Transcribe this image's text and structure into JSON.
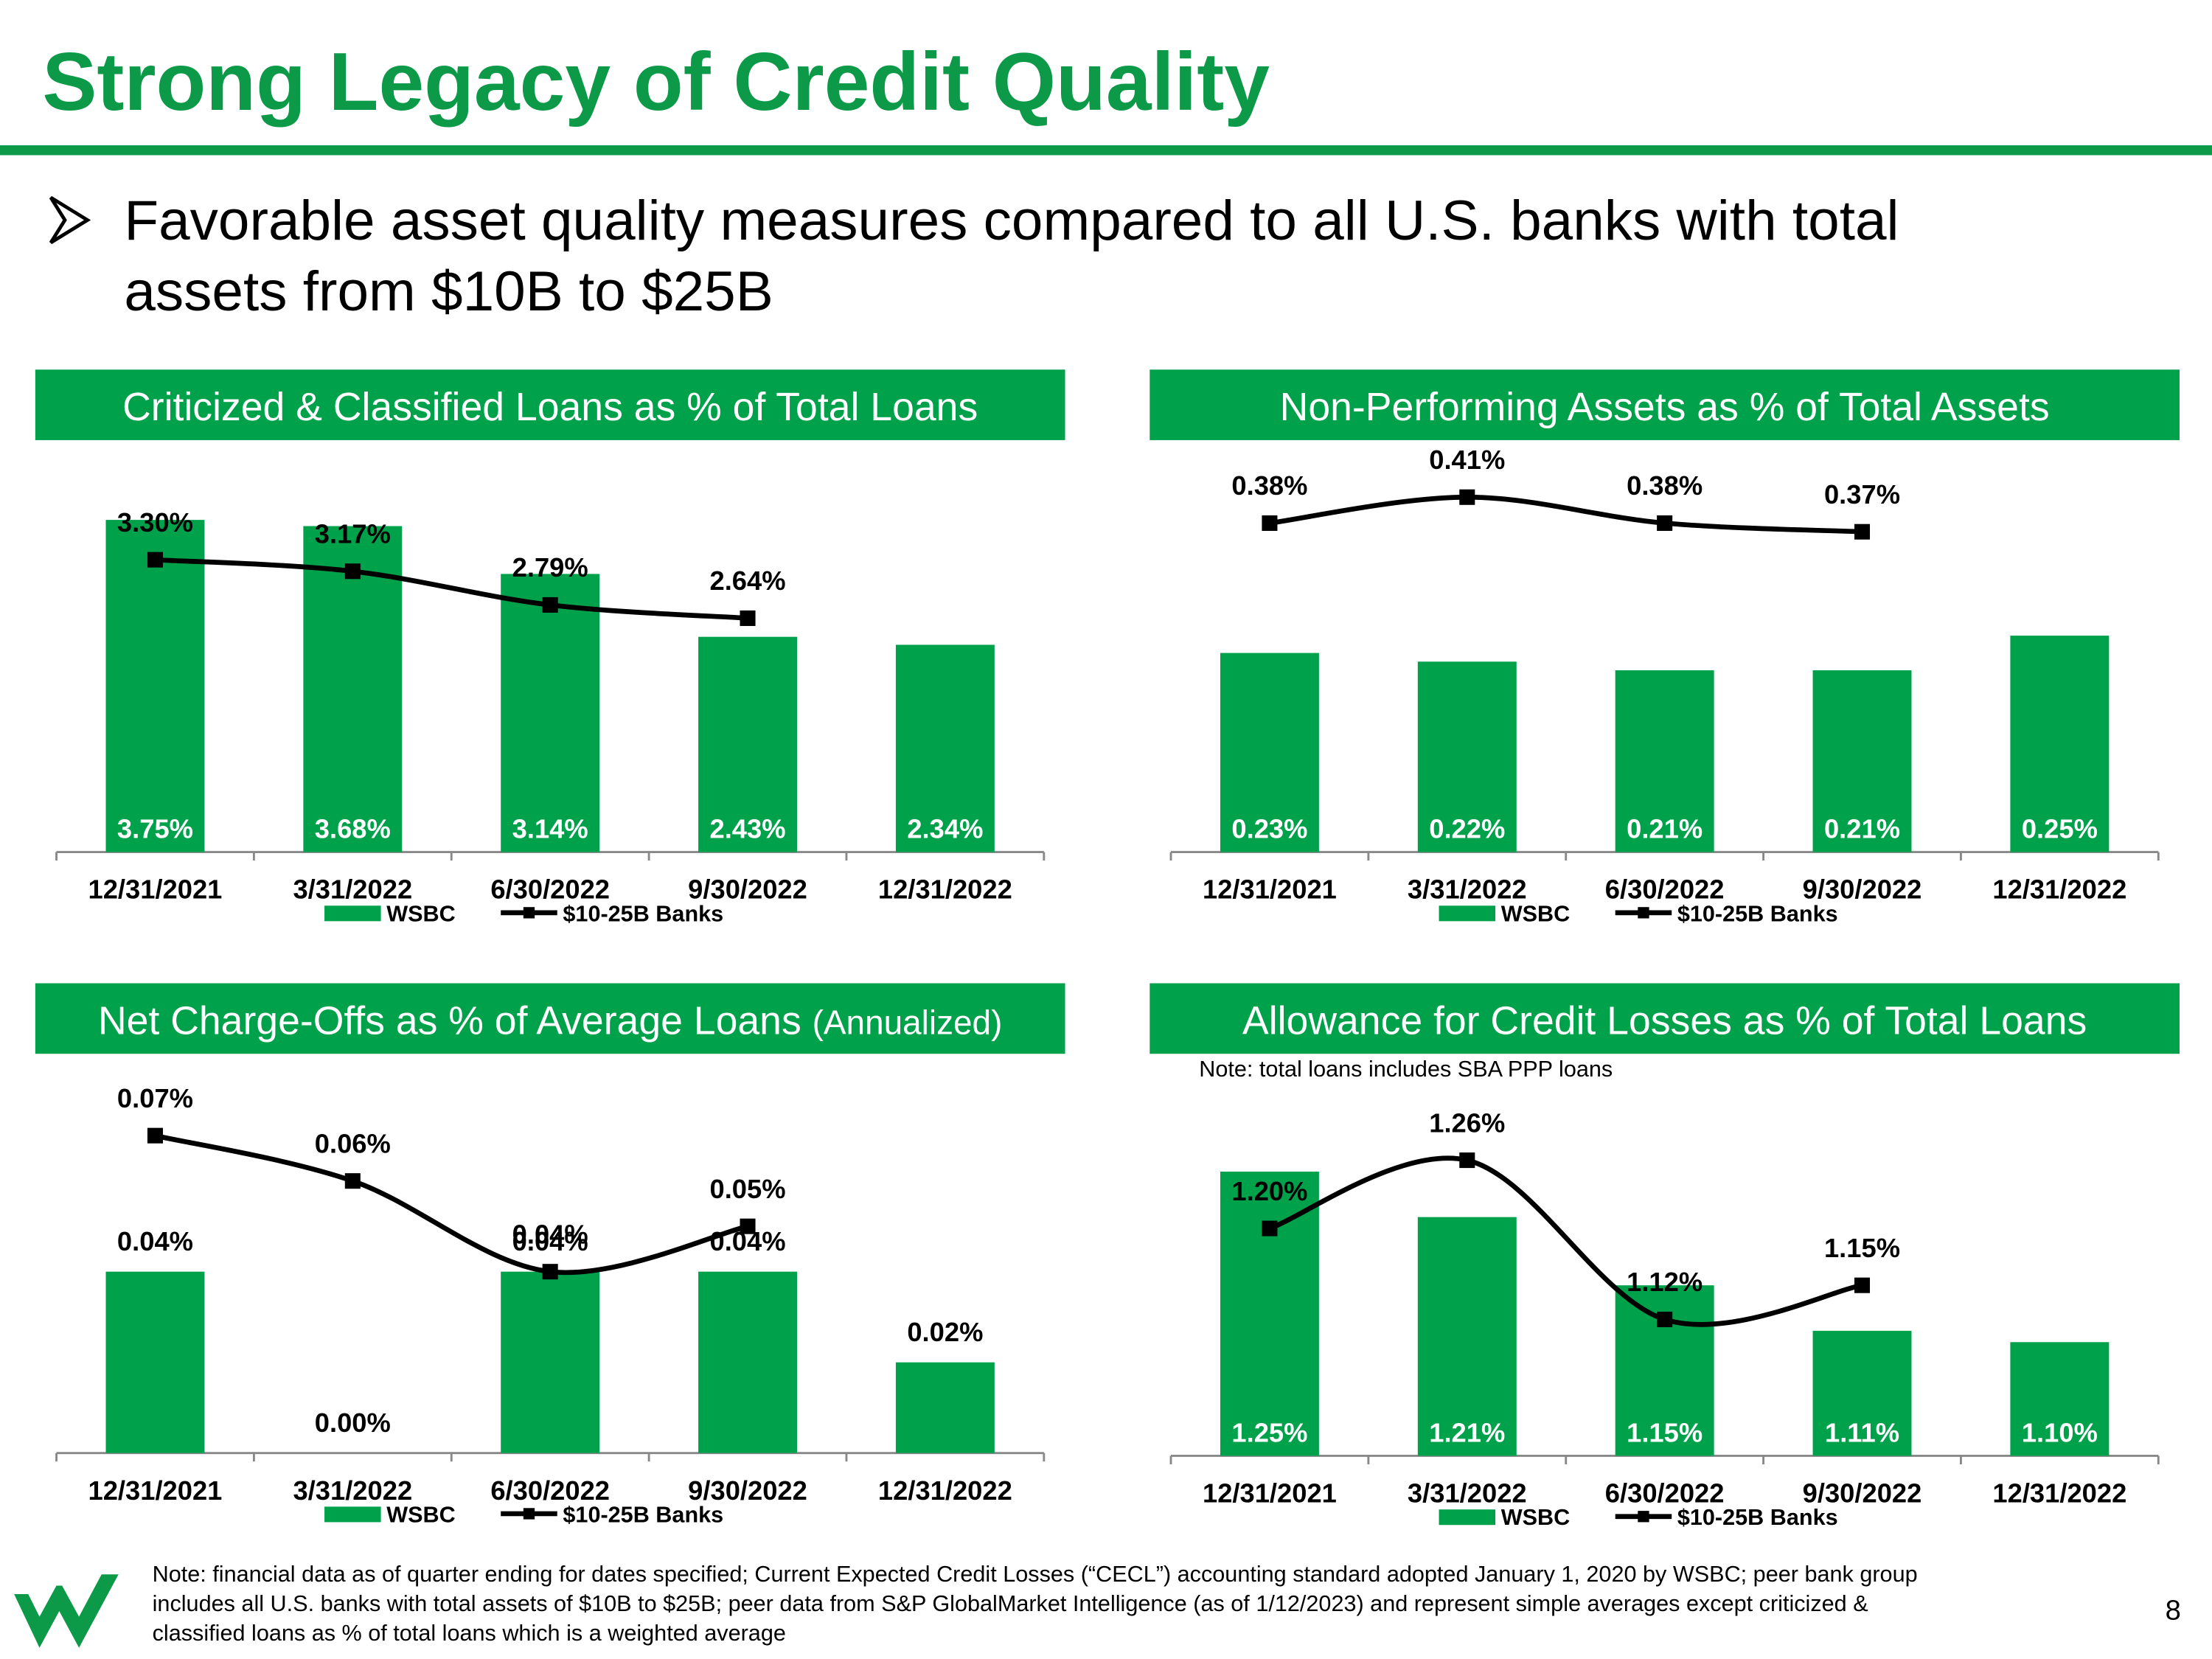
{
  "slide": {
    "title": "Strong Legacy of Credit Quality",
    "bullet": [
      "Favorable asset quality measures compared to all U.S. banks with total",
      "assets from $10B to $25B"
    ],
    "footnote": [
      "Note: financial data as of quarter ending for dates specified; Current Expected Credit Losses (“CECL”) accounting standard adopted January 1, 2020 by WSBC; peer bank group",
      "includes all U.S. banks with total assets of $10B to $25B; peer data from S&P GlobalMarket Intelligence (as of 1/12/2023) and represent simple averages except criticized &",
      "classified loans as % of total loans which is a weighted average"
    ],
    "page_number": "8"
  },
  "chart_data": [
    {
      "type": "bar_line",
      "title": "Criticized & Classified Loans as % of Total Loans",
      "categories": [
        "12/31/2021",
        "3/31/2022",
        "6/30/2022",
        "9/30/2022",
        "12/31/2022"
      ],
      "ylim": [
        0,
        4.3
      ],
      "bar_label_position": "inside-base",
      "series": [
        {
          "name": "WSBC",
          "kind": "bar",
          "color": "#00a14b",
          "values": [
            3.75,
            3.68,
            3.14,
            2.43,
            2.34
          ],
          "value_labels": [
            "3.75%",
            "3.68%",
            "3.14%",
            "2.43%",
            "2.34%"
          ]
        },
        {
          "name": "$10-25B Banks",
          "kind": "line",
          "color": "#000000",
          "values": [
            3.3,
            3.17,
            2.79,
            2.64,
            null
          ],
          "value_labels": [
            "3.30%",
            "3.17%",
            "2.79%",
            "2.64%",
            null
          ]
        }
      ]
    },
    {
      "type": "bar_line",
      "title": "Non-Performing Assets as % of Total Assets",
      "categories": [
        "12/31/2021",
        "3/31/2022",
        "6/30/2022",
        "9/30/2022",
        "12/31/2022"
      ],
      "ylim": [
        0,
        0.44
      ],
      "bar_label_position": "inside-base",
      "series": [
        {
          "name": "WSBC",
          "kind": "bar",
          "color": "#00a14b",
          "values": [
            0.23,
            0.22,
            0.21,
            0.21,
            0.25
          ],
          "value_labels": [
            "0.23%",
            "0.22%",
            "0.21%",
            "0.21%",
            "0.25%"
          ]
        },
        {
          "name": "$10-25B Banks",
          "kind": "line",
          "color": "#000000",
          "values": [
            0.38,
            0.41,
            0.38,
            0.37,
            null
          ],
          "value_labels": [
            "0.38%",
            "0.41%",
            "0.38%",
            "0.37%",
            null
          ]
        }
      ]
    },
    {
      "type": "bar_line",
      "title": "Net Charge-Offs as % of Average Loans",
      "title_note": "(Annualized)",
      "categories": [
        "12/31/2021",
        "3/31/2022",
        "6/30/2022",
        "9/30/2022",
        "12/31/2022"
      ],
      "ylim": [
        0,
        0.084
      ],
      "bar_label_position": "outside-end",
      "series": [
        {
          "name": "WSBC",
          "kind": "bar",
          "color": "#00a14b",
          "values": [
            0.04,
            0.0,
            0.04,
            0.04,
            0.02
          ],
          "value_labels": [
            "0.04%",
            "0.00%",
            "0.04%",
            "0.04%",
            "0.02%"
          ]
        },
        {
          "name": "$10-25B Banks",
          "kind": "line",
          "color": "#000000",
          "values": [
            0.07,
            0.06,
            0.04,
            0.05,
            null
          ],
          "value_labels": [
            "0.07%",
            "0.06%",
            "0.04%",
            "0.05%",
            null
          ]
        }
      ]
    },
    {
      "type": "bar_line",
      "title": "Allowance for Credit Losses as % of Total Loans",
      "note": "Note: total loans includes SBA PPP loans",
      "categories": [
        "12/31/2021",
        "3/31/2022",
        "6/30/2022",
        "9/30/2022",
        "12/31/2022"
      ],
      "ylim": [
        1.0,
        1.335
      ],
      "bar_label_position": "inside-base",
      "series": [
        {
          "name": "WSBC",
          "kind": "bar",
          "color": "#00a14b",
          "values": [
            1.25,
            1.21,
            1.15,
            1.11,
            1.1
          ],
          "value_labels": [
            "1.25%",
            "1.21%",
            "1.15%",
            "1.11%",
            "1.10%"
          ]
        },
        {
          "name": "$10-25B Banks",
          "kind": "line",
          "color": "#000000",
          "values": [
            1.2,
            1.26,
            1.12,
            1.15,
            null
          ],
          "value_labels": [
            "1.20%",
            "1.26%",
            "1.12%",
            "1.15%",
            null
          ]
        }
      ]
    }
  ]
}
